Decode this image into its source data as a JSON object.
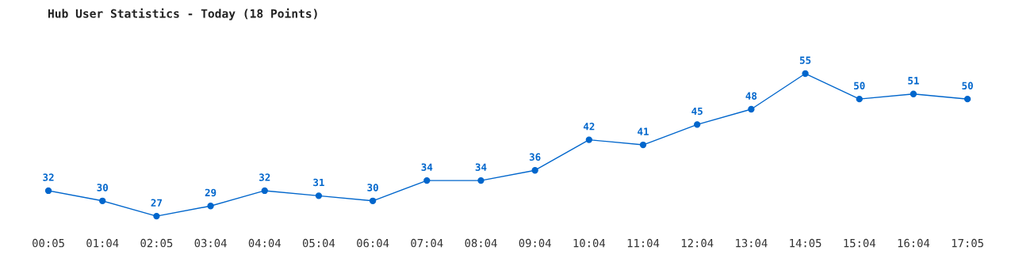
{
  "chart_data": {
    "type": "line",
    "title": "Hub User Statistics - Today (18 Points)",
    "categories": [
      "00:05",
      "01:04",
      "02:05",
      "03:04",
      "04:04",
      "05:04",
      "06:04",
      "07:04",
      "08:04",
      "09:04",
      "10:04",
      "11:04",
      "12:04",
      "13:04",
      "14:05",
      "15:04",
      "16:04",
      "17:05"
    ],
    "series": [
      {
        "color": "#0066cc",
        "values": [
          32,
          30,
          27,
          29,
          32,
          31,
          30,
          34,
          34,
          36,
          42,
          41,
          45,
          48,
          55,
          50,
          51,
          50
        ]
      }
    ],
    "data_labels": true,
    "marker": "circle",
    "line_style": "solid",
    "grid": false
  }
}
